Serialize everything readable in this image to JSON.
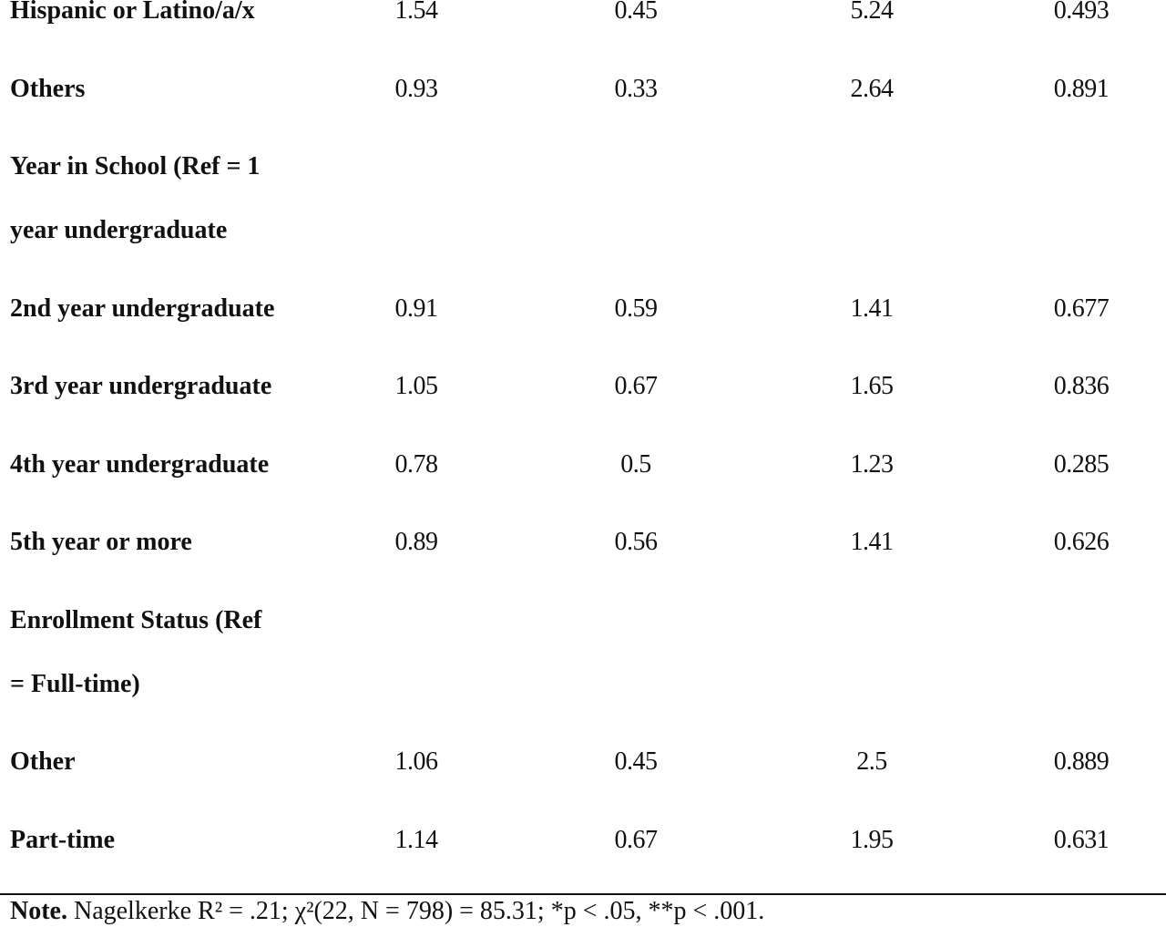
{
  "table": {
    "rows": [
      {
        "label_lines": [
          "Hispanic or Latino/a/x"
        ],
        "values": [
          "1.54",
          "0.45",
          "5.24",
          "0.493"
        ]
      },
      {
        "label_lines": [
          "Others"
        ],
        "values": [
          "0.93",
          "0.33",
          "2.64",
          "0.891"
        ]
      },
      {
        "label_lines": [
          "Year in School (Ref = 1",
          "year undergraduate"
        ],
        "values": []
      },
      {
        "label_lines": [
          "2nd year undergraduate"
        ],
        "values": [
          "0.91",
          "0.59",
          "1.41",
          "0.677"
        ]
      },
      {
        "label_lines": [
          "3rd year undergraduate"
        ],
        "values": [
          "1.05",
          "0.67",
          "1.65",
          "0.836"
        ]
      },
      {
        "label_lines": [
          "4th year undergraduate"
        ],
        "values": [
          "0.78",
          "0.5",
          "1.23",
          "0.285"
        ]
      },
      {
        "label_lines": [
          "5th year or more"
        ],
        "values": [
          "0.89",
          "0.56",
          "1.41",
          "0.626"
        ]
      },
      {
        "label_lines": [
          "Enrollment Status (Ref",
          "= Full-time)"
        ],
        "values": []
      },
      {
        "label_lines": [
          "Other"
        ],
        "values": [
          "1.06",
          "0.45",
          "2.5",
          "0.889"
        ]
      },
      {
        "label_lines": [
          "Part-time"
        ],
        "values": [
          "1.14",
          "0.67",
          "1.95",
          "0.631"
        ]
      }
    ]
  },
  "note": {
    "label": "Note.",
    "text": "Nagelkerke R² = .21; χ²(22, N = 798) = 85.31; *p < .05, **p < .001."
  }
}
